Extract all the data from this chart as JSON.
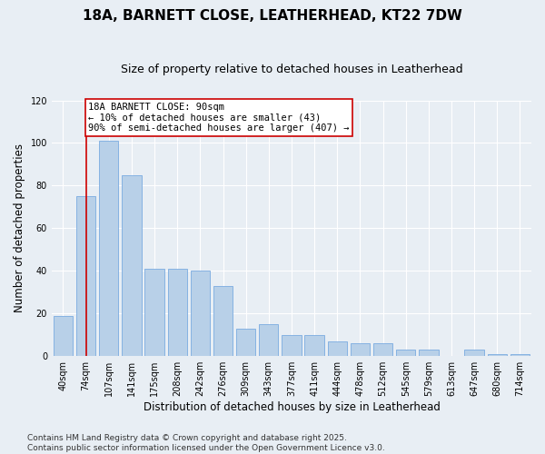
{
  "title": "18A, BARNETT CLOSE, LEATHERHEAD, KT22 7DW",
  "subtitle": "Size of property relative to detached houses in Leatherhead",
  "xlabel": "Distribution of detached houses by size in Leatherhead",
  "ylabel": "Number of detached properties",
  "bar_labels": [
    "40sqm",
    "74sqm",
    "107sqm",
    "141sqm",
    "175sqm",
    "208sqm",
    "242sqm",
    "276sqm",
    "309sqm",
    "343sqm",
    "377sqm",
    "411sqm",
    "444sqm",
    "478sqm",
    "512sqm",
    "545sqm",
    "579sqm",
    "613sqm",
    "647sqm",
    "680sqm",
    "714sqm"
  ],
  "bar_values": [
    19,
    75,
    101,
    85,
    41,
    41,
    40,
    33,
    13,
    15,
    10,
    10,
    7,
    6,
    6,
    3,
    3,
    0,
    3,
    1,
    1
  ],
  "bar_color": "#b8d0e8",
  "bar_edge_color": "#7aabe0",
  "vline_x": 1,
  "vline_color": "#cc0000",
  "annotation_text": "18A BARNETT CLOSE: 90sqm\n← 10% of detached houses are smaller (43)\n90% of semi-detached houses are larger (407) →",
  "annotation_box_color": "#ffffff",
  "annotation_box_edge": "#cc0000",
  "ylim": [
    0,
    120
  ],
  "yticks": [
    0,
    20,
    40,
    60,
    80,
    100,
    120
  ],
  "footer": "Contains HM Land Registry data © Crown copyright and database right 2025.\nContains public sector information licensed under the Open Government Licence v3.0.",
  "bg_color": "#e8eef4",
  "plot_bg_color": "#e8eef4",
  "grid_color": "#ffffff",
  "title_fontsize": 11,
  "subtitle_fontsize": 9,
  "xlabel_fontsize": 8.5,
  "ylabel_fontsize": 8.5,
  "tick_fontsize": 7,
  "footer_fontsize": 6.5,
  "annotation_fontsize": 7.5
}
